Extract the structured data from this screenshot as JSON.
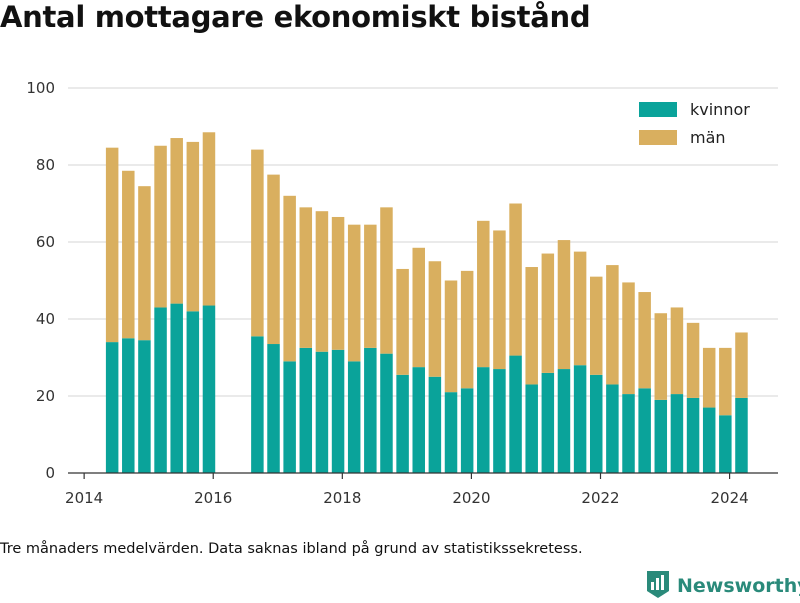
{
  "title": "Antal mottagare ekonomiskt bistånd",
  "footnote": "Tre månaders medelvärden. Data saknas ibland på grund av statistikssekretess.",
  "brand": {
    "name": "Newsworthy",
    "icon": "newsworthy-logo-icon"
  },
  "colors": {
    "kvinnor": "#0aa39a",
    "man": "#d9af5f",
    "grid": "#dddddd",
    "axis": "#333333"
  },
  "chart_data": {
    "type": "bar",
    "stacked": true,
    "title": "Antal mottagare ekonomiskt bistånd",
    "xlabel": "",
    "ylabel": "",
    "ylim": [
      0,
      100
    ],
    "xlim": [
      "2013-10-01",
      "2024-10-01"
    ],
    "yticks": [
      "0",
      "20",
      "40",
      "60",
      "80",
      "100"
    ],
    "xticks": [
      "2014",
      "2016",
      "2018",
      "2020",
      "2022",
      "2024"
    ],
    "legend": {
      "position": "top-right",
      "entries": [
        "kvinnor",
        "män"
      ]
    },
    "grid": "horizontal",
    "x": [
      "2014-05",
      "2014-08",
      "2014-11",
      "2015-02",
      "2015-05",
      "2015-08",
      "2015-11",
      "2016-08",
      "2016-11",
      "2017-02",
      "2017-05",
      "2017-08",
      "2017-11",
      "2018-02",
      "2018-05",
      "2018-08",
      "2018-11",
      "2019-02",
      "2019-05",
      "2019-08",
      "2019-11",
      "2020-02",
      "2020-05",
      "2020-08",
      "2020-11",
      "2021-02",
      "2021-05",
      "2021-08",
      "2021-11",
      "2022-02",
      "2022-05",
      "2022-08",
      "2022-11",
      "2023-02",
      "2023-05",
      "2023-08",
      "2023-11",
      "2024-02"
    ],
    "series": [
      {
        "name": "kvinnor",
        "values": [
          34,
          35,
          34.5,
          43,
          44,
          42,
          43.5,
          35.5,
          33.5,
          29,
          32.5,
          31.5,
          32,
          29,
          32.5,
          31,
          25.5,
          27.5,
          25,
          21,
          22,
          27.5,
          27,
          30.5,
          23,
          26,
          27,
          28,
          25.5,
          23,
          20.5,
          22,
          19,
          20.5,
          19.5,
          17,
          15,
          19.5
        ]
      },
      {
        "name": "män",
        "values": [
          50.5,
          43.5,
          40,
          42,
          43,
          44,
          45,
          48.5,
          44,
          43,
          36.5,
          36.5,
          34.5,
          35.5,
          32,
          38,
          27.5,
          31,
          30,
          29,
          30.5,
          38,
          36,
          39.5,
          30.5,
          31,
          33.5,
          29.5,
          25.5,
          31,
          29,
          25,
          22.5,
          22.5,
          19.5,
          15.5,
          17.5,
          17
        ]
      }
    ]
  }
}
